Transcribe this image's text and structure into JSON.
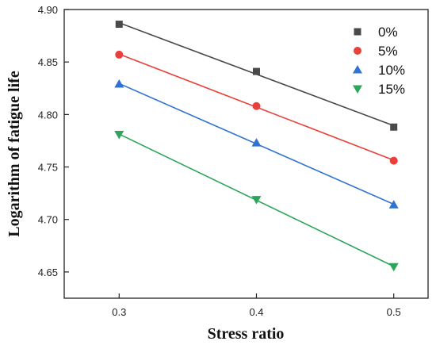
{
  "chart_data": {
    "type": "scatter",
    "title": "",
    "xlabel": "Stress ratio",
    "ylabel": "Logarithm of fatigue life",
    "x": [
      0.3,
      0.4,
      0.5
    ],
    "xticks": [
      "0.3",
      "0.4",
      "0.5"
    ],
    "yticks": [
      "4.65",
      "4.70",
      "4.75",
      "4.80",
      "4.85",
      "4.90"
    ],
    "xlim": [
      0.26,
      0.525
    ],
    "ylim": [
      4.625,
      4.9
    ],
    "legend_position": "top-right",
    "fit_lines": true,
    "series": [
      {
        "name": "0%",
        "values": [
          4.886,
          4.841,
          4.788
        ],
        "color": "#4a4a4a",
        "marker": "square"
      },
      {
        "name": "5%",
        "values": [
          4.857,
          4.808,
          4.756
        ],
        "color": "#e8403a",
        "marker": "circle"
      },
      {
        "name": "10%",
        "values": [
          4.829,
          4.773,
          4.714
        ],
        "color": "#2f73cf",
        "marker": "triangle-up"
      },
      {
        "name": "15%",
        "values": [
          4.781,
          4.719,
          4.655
        ],
        "color": "#2ea55a",
        "marker": "triangle-down"
      }
    ]
  }
}
